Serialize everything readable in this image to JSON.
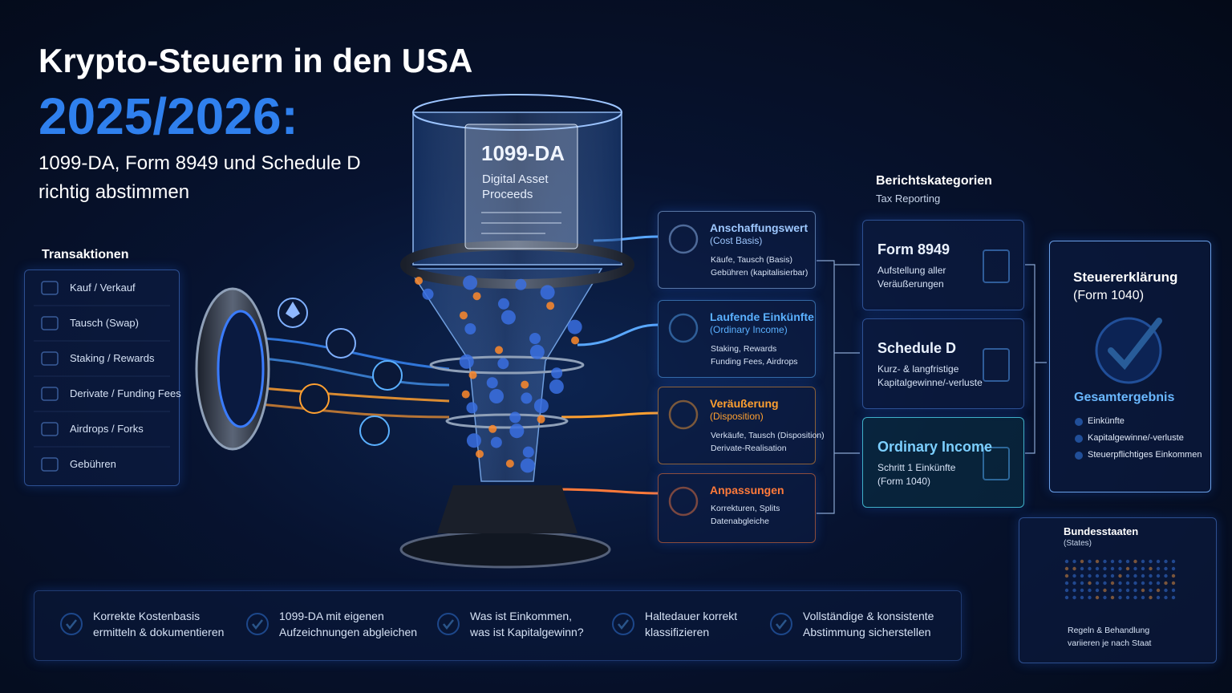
{
  "header": {
    "title": "Krypto-Steuern in den USA",
    "year": "2025/2026:",
    "subtitle": [
      "1099-DA, Form 8949 und Schedule D",
      "richtig abstimmen"
    ]
  },
  "transactions": {
    "title": "Transaktionen",
    "items": [
      "Kauf / Verkauf",
      "Tausch (Swap)",
      "Staking / Rewards",
      "Derivate / Funding Fees",
      "Airdrops / Forks",
      "Gebühren"
    ]
  },
  "document": {
    "title": "1099-DA",
    "lines": [
      "Digital Asset",
      "Proceeds"
    ]
  },
  "categories": [
    {
      "title": "Anschaffungswert",
      "subtitle": "(Cost Basis)",
      "lines": [
        "Käufe, Tausch (Basis)",
        "Gebühren (kapitalisierbar)"
      ]
    },
    {
      "title": "Laufende Einkünfte",
      "subtitle": "(Ordinary Income)",
      "lines": [
        "Staking, Rewards",
        "Funding Fees, Airdrops"
      ]
    },
    {
      "title": "Veräußerung",
      "subtitle": "(Disposition)",
      "lines": [
        "Verkäufe, Tausch (Disposition)",
        "Derivate-Realisation"
      ]
    },
    {
      "title": "Anpassungen",
      "lines": [
        "Korrekturen, Splits",
        "Datenabgleiche"
      ]
    }
  ],
  "reporting": {
    "title": "Berichtskategorien",
    "subtitle": "Tax Reporting"
  },
  "forms": [
    {
      "title": "Form 8949",
      "lines": [
        "Aufstellung aller",
        "Veräußerungen"
      ]
    },
    {
      "title": "Schedule D",
      "lines": [
        "Kurz- & langfristige",
        "Kapitalgewinne/-verluste"
      ]
    },
    {
      "title": "Ordinary Income",
      "lines": [
        "Schritt 1 Einkünfte",
        "(Form 1040)"
      ]
    }
  ],
  "result": {
    "title": "Steuererklärung",
    "subtitle": "(Form 1040)",
    "summary": "Gesamtergebnis",
    "checks": [
      "Einkünfte",
      "Kapitalgewinne/-verluste",
      "Steuerpflichtiges Einkommen"
    ]
  },
  "states": {
    "title": "Bundesstaaten",
    "subtitle": "(States)",
    "lines": [
      "Regeln & Behandlung",
      "variieren je nach Staat"
    ]
  },
  "checklist": [
    {
      "lines": [
        "Korrekte Kostenbasis",
        "ermitteln & dokumentieren"
      ]
    },
    {
      "lines": [
        "1099-DA mit eigenen",
        "Aufzeichnungen abgleichen"
      ]
    },
    {
      "lines": [
        "Was ist Einkommen,",
        "was ist Kapitalgewinn?"
      ]
    },
    {
      "lines": [
        "Haltedauer korrekt",
        "klassifizieren"
      ]
    },
    {
      "lines": [
        "Vollständige & konsistente",
        "Abstimmung sicherstellen"
      ]
    }
  ]
}
